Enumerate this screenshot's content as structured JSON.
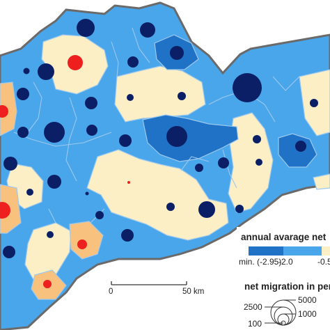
{
  "legend": {
    "migration_title": "annual avarage net",
    "ticks": [
      "min. (-2.95)",
      "-2.0",
      "-0.5"
    ],
    "class_colors": [
      "#1f72c6",
      "#4aa6ea",
      "#fcefc6",
      "#f8c27e"
    ],
    "size_title": "net migration in per",
    "size_values": [
      "2500",
      "5000",
      "100",
      "1000"
    ]
  },
  "scale_bar": {
    "start": "0",
    "end": "50 km"
  },
  "colors": {
    "water_outline": "#6a6a6a",
    "district_border": "#9cc8ee",
    "symbol_negative": "#0b1f66",
    "symbol_positive": "#ee1f1f"
  }
}
